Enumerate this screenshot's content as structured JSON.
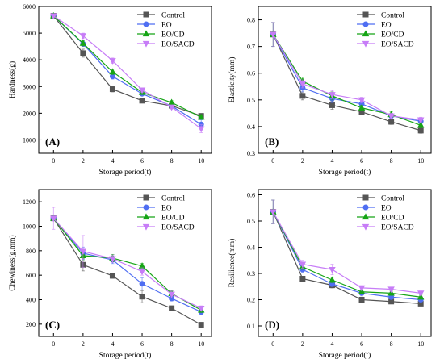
{
  "figure": {
    "series_colors": {
      "Control": "#555555",
      "EO": "#4f6ef2",
      "EO/CD": "#16a516",
      "EO/SACD": "#c77df7"
    },
    "series_markers": {
      "Control": "square",
      "EO": "circle",
      "EO/CD": "triangle-up",
      "EO/SACD": "triangle-down"
    }
  },
  "chart_data": [
    {
      "type": "line",
      "panel_label": "(A)",
      "xlabel": "Storage period(t)",
      "ylabel": "Hardness(g)",
      "x": [
        0,
        2,
        4,
        6,
        8,
        10
      ],
      "xticks": [
        "0",
        "2",
        "4",
        "6",
        "8",
        "10"
      ],
      "xlim": [
        -1,
        10.7
      ],
      "ylim": [
        500,
        6000
      ],
      "yticks": [
        "1000",
        "2000",
        "3000",
        "4000",
        "5000",
        "6000"
      ],
      "ytick_values": [
        1000,
        2000,
        3000,
        4000,
        5000,
        6000
      ],
      "legend_position": "top-right",
      "series": [
        {
          "name": "Control",
          "values": [
            5650,
            4250,
            2900,
            2470,
            2280,
            1900
          ],
          "errors": [
            0,
            150,
            100,
            60,
            70,
            80
          ]
        },
        {
          "name": "EO",
          "values": [
            5650,
            4600,
            3380,
            2730,
            2270,
            1580
          ],
          "errors": [
            0,
            100,
            100,
            60,
            70,
            170
          ]
        },
        {
          "name": "EO/CD",
          "values": [
            5650,
            4620,
            3550,
            2780,
            2400,
            1850
          ],
          "errors": [
            0,
            100,
            100,
            60,
            70,
            80
          ]
        },
        {
          "name": "EO/SACD",
          "values": [
            5650,
            4900,
            3970,
            2870,
            2230,
            1420
          ],
          "errors": [
            0,
            100,
            100,
            80,
            70,
            150
          ]
        }
      ]
    },
    {
      "type": "line",
      "panel_label": "(B)",
      "xlabel": "Storage period(t)",
      "ylabel": "Elasticity(mm)",
      "x": [
        0,
        2,
        4,
        6,
        8,
        10
      ],
      "xticks": [
        "0",
        "2",
        "4",
        "6",
        "8",
        "10"
      ],
      "xlim": [
        -1,
        10.7
      ],
      "ylim": [
        0.3,
        0.85
      ],
      "yticks": [
        "0.3",
        "0.4",
        "0.5",
        "0.6",
        "0.7",
        "0.8"
      ],
      "ytick_values": [
        0.3,
        0.4,
        0.5,
        0.6,
        0.7,
        0.8
      ],
      "legend_position": "top-right",
      "series": [
        {
          "name": "Control",
          "values": [
            0.745,
            0.515,
            0.48,
            0.455,
            0.418,
            0.385
          ],
          "errors": [
            0.045,
            0.015,
            0.015,
            0.01,
            0.01,
            0.01
          ]
        },
        {
          "name": "EO",
          "values": [
            0.745,
            0.545,
            0.505,
            0.485,
            0.44,
            0.42
          ],
          "errors": [
            0.045,
            0.015,
            0.015,
            0.01,
            0.01,
            0.01
          ]
        },
        {
          "name": "EO/CD",
          "values": [
            0.745,
            0.57,
            0.515,
            0.47,
            0.445,
            0.405
          ],
          "errors": [
            0.045,
            0.015,
            0.015,
            0.01,
            0.01,
            0.01
          ]
        },
        {
          "name": "EO/SACD",
          "values": [
            0.745,
            0.56,
            0.52,
            0.5,
            0.44,
            0.425
          ],
          "errors": [
            0.045,
            0.015,
            0.015,
            0.01,
            0.01,
            0.01
          ]
        }
      ]
    },
    {
      "type": "line",
      "panel_label": "(C)",
      "xlabel": "Storage period(t)",
      "ylabel": "Chewiness(g.mm)",
      "x": [
        0,
        2,
        4,
        6,
        8,
        10
      ],
      "xticks": [
        "0",
        "2",
        "4",
        "6",
        "8",
        "10"
      ],
      "xlim": [
        -1,
        10.7
      ],
      "ylim": [
        100,
        1300
      ],
      "yticks": [
        "200",
        "400",
        "600",
        "800",
        "1000",
        "1200"
      ],
      "ytick_values": [
        200,
        400,
        600,
        800,
        1000,
        1200
      ],
      "legend_position": "top-right",
      "series": [
        {
          "name": "Control",
          "values": [
            1065,
            685,
            595,
            425,
            330,
            195
          ],
          "errors": [
            0,
            50,
            20,
            50,
            15,
            15
          ]
        },
        {
          "name": "EO",
          "values": [
            1065,
            780,
            725,
            530,
            410,
            300
          ],
          "errors": [
            0,
            50,
            30,
            50,
            20,
            20
          ]
        },
        {
          "name": "EO/CD",
          "values": [
            1065,
            760,
            740,
            675,
            450,
            315
          ],
          "errors": [
            0,
            40,
            30,
            20,
            20,
            20
          ]
        },
        {
          "name": "EO/SACD",
          "values": [
            1065,
            795,
            735,
            630,
            445,
            330
          ],
          "errors": [
            90,
            130,
            30,
            30,
            30,
            20
          ]
        }
      ]
    },
    {
      "type": "line",
      "panel_label": "(D)",
      "xlabel": "Storage period(t)",
      "ylabel": "Resilience(mm)",
      "x": [
        0,
        2,
        4,
        6,
        8,
        10
      ],
      "xticks": [
        "0",
        "2",
        "4",
        "6",
        "8",
        "10"
      ],
      "xlim": [
        -1,
        10.7
      ],
      "ylim": [
        0.06,
        0.62
      ],
      "yticks": [
        "0.1",
        "0.2",
        "0.3",
        "0.4",
        "0.5",
        "0.6"
      ],
      "ytick_values": [
        0.1,
        0.2,
        0.3,
        0.4,
        0.5,
        0.6
      ],
      "legend_position": "top-right",
      "series": [
        {
          "name": "Control",
          "values": [
            0.535,
            0.28,
            0.255,
            0.2,
            0.193,
            0.185
          ],
          "errors": [
            0.045,
            0.008,
            0.01,
            0.01,
            0.008,
            0.008
          ]
        },
        {
          "name": "EO",
          "values": [
            0.535,
            0.315,
            0.26,
            0.225,
            0.21,
            0.2
          ],
          "errors": [
            0.045,
            0.01,
            0.01,
            0.008,
            0.008,
            0.008
          ]
        },
        {
          "name": "EO/CD",
          "values": [
            0.535,
            0.325,
            0.275,
            0.23,
            0.225,
            0.21
          ],
          "errors": [
            0.045,
            0.01,
            0.01,
            0.008,
            0.008,
            0.008
          ]
        },
        {
          "name": "EO/SACD",
          "values": [
            0.535,
            0.335,
            0.315,
            0.245,
            0.24,
            0.225
          ],
          "errors": [
            0.045,
            0.015,
            0.02,
            0.008,
            0.008,
            0.008
          ]
        }
      ]
    }
  ]
}
